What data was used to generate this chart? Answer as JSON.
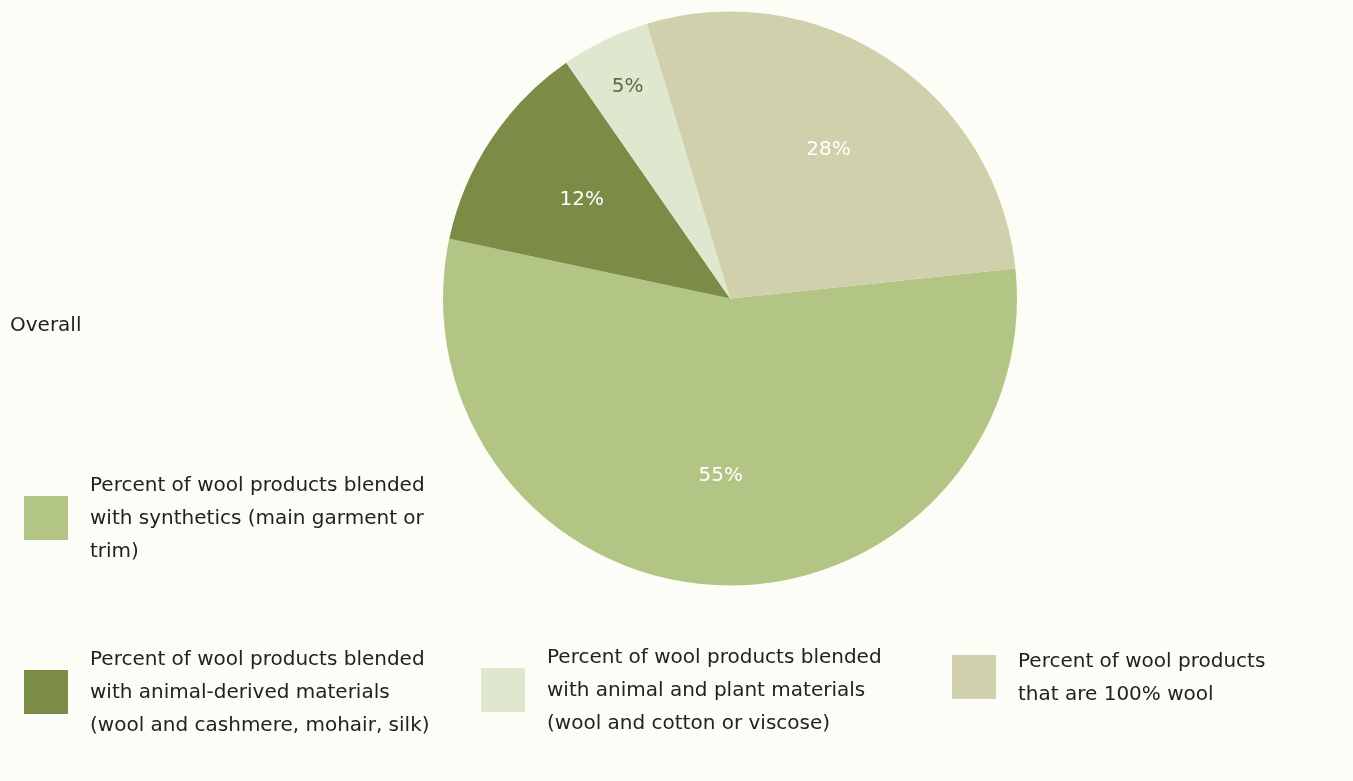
{
  "chart_data": {
    "type": "pie",
    "legend_title": "Overall",
    "legend": "bottom",
    "value_labels": [
      "55%",
      "12%",
      "5%",
      "28%"
    ],
    "categories": [
      "Percent of wool products blended with synthetics (main garment or trim)",
      "Percent of wool products blended with animal-derived materials (wool and cashmere, mohair, silk)",
      "Percent of wool products blended with animal and plant materials (wool and cotton or viscose)",
      "Percent of wool products that are 100% wool"
    ],
    "values": [
      55,
      12,
      5,
      28
    ],
    "colors": [
      "#b2c584",
      "#7a8c46",
      "#dfe7cf",
      "#d0d1ac"
    ]
  }
}
